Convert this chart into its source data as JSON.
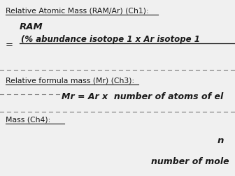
{
  "bg_color": "#f0f0f0",
  "text_color": "#1a1a1a",
  "title1": "Relative Atomic Mass (RAM/Ar) (Ch1):",
  "ram_label": "RAM",
  "equals": "=",
  "numerator": "(% abundance isotope 1 x Ar isotope 1",
  "section2_title": "Relative formula mass (Mr) (Ch3):",
  "formula2": "Mr = Ar x  number of atoms of el",
  "section3_title": "Mass (Ch4):",
  "bottom_n": "n",
  "bottom_text": "number of mole",
  "title1_fontsize": 7.8,
  "body_fontsize": 8.5,
  "small_fontsize": 7.8
}
